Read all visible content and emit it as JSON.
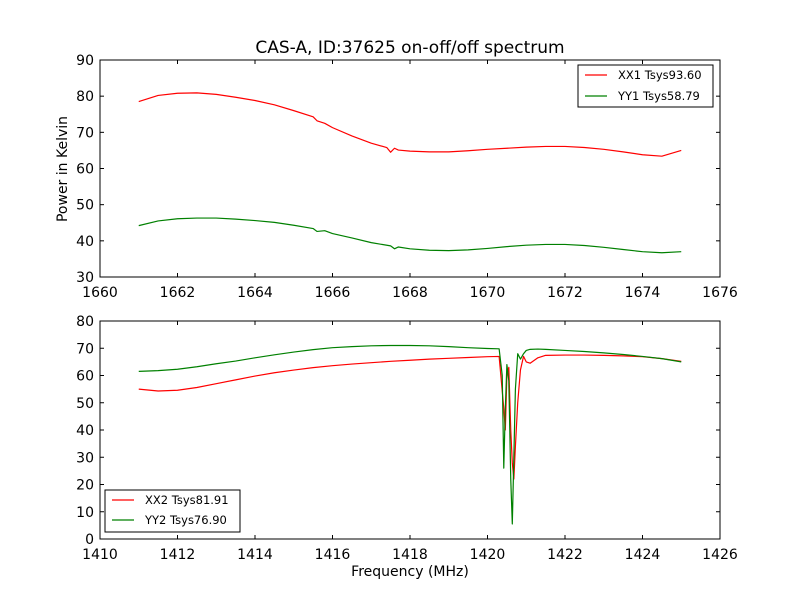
{
  "chart_data": [
    {
      "type": "line",
      "title": "CAS-A, ID:37625 on-off/off spectrum",
      "xlabel": "",
      "ylabel": "Power in Kelvin",
      "xlim": [
        1660,
        1676
      ],
      "ylim": [
        30,
        90
      ],
      "xticks": [
        "1660",
        "1662",
        "1664",
        "1666",
        "1668",
        "1670",
        "1672",
        "1674",
        "1676"
      ],
      "yticks": [
        "30",
        "40",
        "50",
        "60",
        "70",
        "80",
        "90"
      ],
      "legend_position": "top-right",
      "grid": false,
      "series": [
        {
          "name": "XX1 Tsys93.60",
          "color": "#ff0000",
          "x": [
            1661.0,
            1661.5,
            1662.0,
            1662.5,
            1663.0,
            1663.5,
            1664.0,
            1664.5,
            1665.0,
            1665.5,
            1665.6,
            1665.8,
            1666.0,
            1666.5,
            1667.0,
            1667.4,
            1667.5,
            1667.6,
            1667.7,
            1668.0,
            1668.5,
            1669.0,
            1669.5,
            1670.0,
            1670.5,
            1671.0,
            1671.5,
            1672.0,
            1672.5,
            1673.0,
            1673.5,
            1674.0,
            1674.5,
            1675.0
          ],
          "y": [
            78.5,
            80.2,
            80.8,
            80.9,
            80.5,
            79.7,
            78.8,
            77.6,
            76.0,
            74.3,
            73.2,
            72.5,
            71.3,
            69.0,
            67.0,
            65.8,
            64.5,
            65.6,
            65.1,
            64.8,
            64.6,
            64.6,
            64.9,
            65.3,
            65.6,
            65.9,
            66.1,
            66.1,
            65.8,
            65.3,
            64.6,
            63.8,
            63.4,
            65.0
          ]
        },
        {
          "name": "YY1 Tsys58.79",
          "color": "#008000",
          "x": [
            1661.0,
            1661.5,
            1662.0,
            1662.5,
            1663.0,
            1663.5,
            1664.0,
            1664.5,
            1665.0,
            1665.5,
            1665.6,
            1665.8,
            1666.0,
            1666.5,
            1667.0,
            1667.5,
            1667.6,
            1667.7,
            1668.0,
            1668.5,
            1669.0,
            1669.5,
            1670.0,
            1670.5,
            1671.0,
            1671.5,
            1672.0,
            1672.5,
            1673.0,
            1673.5,
            1674.0,
            1674.5,
            1675.0
          ],
          "y": [
            44.2,
            45.5,
            46.1,
            46.3,
            46.3,
            46.0,
            45.6,
            45.1,
            44.3,
            43.4,
            42.6,
            42.8,
            42.0,
            40.8,
            39.5,
            38.6,
            37.8,
            38.3,
            37.8,
            37.4,
            37.3,
            37.5,
            37.9,
            38.4,
            38.8,
            39.0,
            39.0,
            38.7,
            38.2,
            37.6,
            37.0,
            36.7,
            37.0
          ]
        }
      ]
    },
    {
      "type": "line",
      "title": "",
      "xlabel": "Frequency (MHz)",
      "ylabel": "",
      "xlim": [
        1410,
        1426
      ],
      "ylim": [
        0,
        80
      ],
      "xticks": [
        "1410",
        "1412",
        "1414",
        "1416",
        "1418",
        "1420",
        "1422",
        "1424",
        "1426"
      ],
      "yticks": [
        "0",
        "10",
        "20",
        "30",
        "40",
        "50",
        "60",
        "70",
        "80"
      ],
      "legend_position": "bottom-left",
      "grid": false,
      "series": [
        {
          "name": "XX2 Tsys81.91",
          "color": "#ff0000",
          "x": [
            1411.0,
            1411.5,
            1412.0,
            1412.5,
            1413.0,
            1413.5,
            1414.0,
            1414.5,
            1415.0,
            1415.5,
            1416.0,
            1416.5,
            1417.0,
            1417.5,
            1418.0,
            1418.5,
            1419.0,
            1419.5,
            1420.0,
            1420.3,
            1420.42,
            1420.46,
            1420.5,
            1420.55,
            1420.6,
            1420.64,
            1420.68,
            1420.72,
            1420.78,
            1420.85,
            1420.93,
            1421.0,
            1421.1,
            1421.3,
            1421.5,
            1422.0,
            1422.5,
            1423.0,
            1423.5,
            1424.0,
            1424.5,
            1425.0
          ],
          "y": [
            55.0,
            54.3,
            54.6,
            55.6,
            57.0,
            58.4,
            59.8,
            61.0,
            62.0,
            62.9,
            63.6,
            64.2,
            64.7,
            65.2,
            65.6,
            66.0,
            66.3,
            66.6,
            66.9,
            67.0,
            48.0,
            40.0,
            60.0,
            63.0,
            40.0,
            28.0,
            22.0,
            34.0,
            50.0,
            62.0,
            67.0,
            65.0,
            64.5,
            66.5,
            67.4,
            67.5,
            67.5,
            67.4,
            67.2,
            66.9,
            66.2,
            65.2
          ]
        },
        {
          "name": "YY2 Tsys76.90",
          "color": "#008000",
          "x": [
            1411.0,
            1411.5,
            1412.0,
            1412.5,
            1413.0,
            1413.5,
            1414.0,
            1414.5,
            1415.0,
            1415.5,
            1416.0,
            1416.5,
            1417.0,
            1417.5,
            1418.0,
            1418.5,
            1419.0,
            1419.5,
            1420.0,
            1420.3,
            1420.38,
            1420.42,
            1420.46,
            1420.5,
            1420.55,
            1420.6,
            1420.64,
            1420.68,
            1420.72,
            1420.78,
            1420.85,
            1420.93,
            1421.0,
            1421.1,
            1421.3,
            1421.5,
            1422.0,
            1422.5,
            1423.0,
            1423.5,
            1424.0,
            1424.5,
            1425.0
          ],
          "y": [
            61.5,
            61.8,
            62.3,
            63.2,
            64.3,
            65.3,
            66.5,
            67.6,
            68.6,
            69.5,
            70.2,
            70.6,
            70.9,
            71.0,
            71.0,
            70.9,
            70.6,
            70.2,
            69.9,
            69.8,
            60.0,
            26.0,
            48.0,
            64.0,
            58.0,
            22.0,
            5.5,
            30.0,
            55.0,
            68.0,
            66.0,
            68.0,
            69.2,
            69.6,
            69.7,
            69.6,
            69.2,
            68.8,
            68.3,
            67.7,
            67.0,
            66.2,
            65.0
          ]
        }
      ]
    }
  ]
}
